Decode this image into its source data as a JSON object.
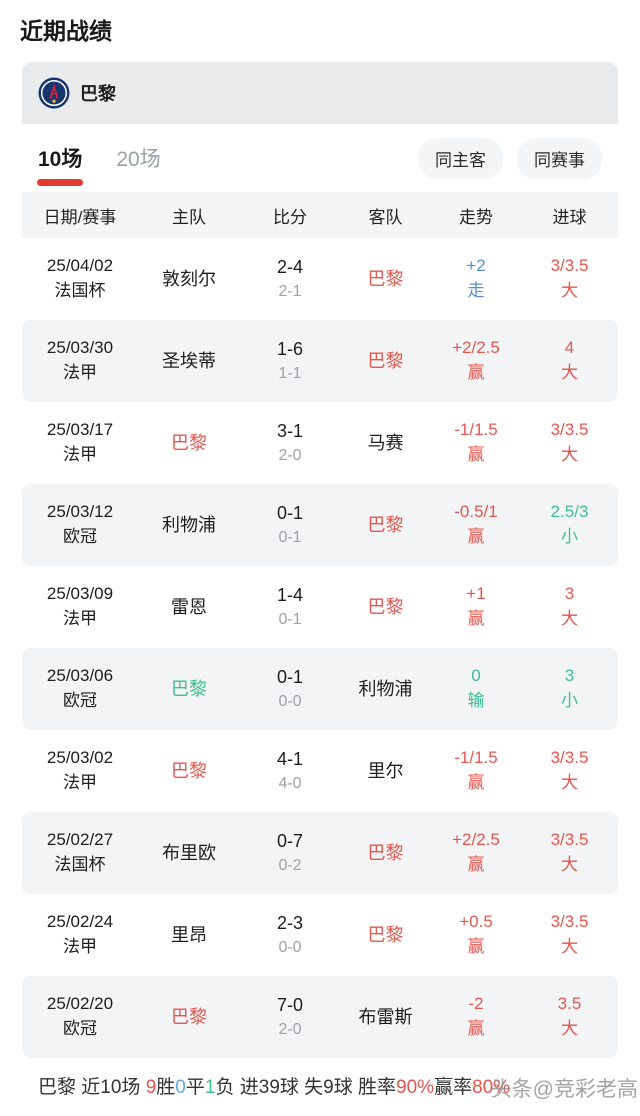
{
  "page": {
    "title": "近期战绩"
  },
  "colors": {
    "red": "#e2574f",
    "green": "#3fbe8f",
    "blue": "#5b8fd4",
    "sky": "#62a8da",
    "accent": "#e23c31",
    "sub": "#a1a1a6",
    "gray_tab": "#9aa0a6",
    "team_bar_bg": "#e9ebed",
    "alt_row_bg": "#f3f4f6"
  },
  "card": {
    "team": {
      "name": "巴黎",
      "logo": "psg-crest-icon"
    },
    "tabs": [
      {
        "label": "10场",
        "active": true
      },
      {
        "label": "20场",
        "active": false
      }
    ],
    "filters": [
      {
        "label": "同主客"
      },
      {
        "label": "同赛事"
      }
    ],
    "table": {
      "columns": [
        "日期/赛事",
        "主队",
        "比分",
        "客队",
        "走势",
        "进球"
      ],
      "rows": [
        {
          "date": "25/04/02",
          "competition": "法国杯",
          "home": "敦刻尔",
          "home_color": "black",
          "score": "2-4",
          "half_score": "2-1",
          "away": "巴黎",
          "away_color": "red",
          "trend_value": "+2",
          "trend_result": "走",
          "trend_color": "blue",
          "goals_value": "3/3.5",
          "goals_result": "大",
          "goals_color": "red"
        },
        {
          "date": "25/03/30",
          "competition": "法甲",
          "home": "圣埃蒂",
          "home_color": "black",
          "score": "1-6",
          "half_score": "1-1",
          "away": "巴黎",
          "away_color": "red",
          "trend_value": "+2/2.5",
          "trend_result": "赢",
          "trend_color": "red",
          "goals_value": "4",
          "goals_result": "大",
          "goals_color": "red"
        },
        {
          "date": "25/03/17",
          "competition": "法甲",
          "home": "巴黎",
          "home_color": "red",
          "score": "3-1",
          "half_score": "2-0",
          "away": "马赛",
          "away_color": "black",
          "trend_value": "-1/1.5",
          "trend_result": "赢",
          "trend_color": "red",
          "goals_value": "3/3.5",
          "goals_result": "大",
          "goals_color": "red"
        },
        {
          "date": "25/03/12",
          "competition": "欧冠",
          "home": "利物浦",
          "home_color": "black",
          "score": "0-1",
          "half_score": "0-1",
          "away": "巴黎",
          "away_color": "red",
          "trend_value": "-0.5/1",
          "trend_result": "赢",
          "trend_color": "red",
          "goals_value": "2.5/3",
          "goals_result": "小",
          "goals_color": "green"
        },
        {
          "date": "25/03/09",
          "competition": "法甲",
          "home": "雷恩",
          "home_color": "black",
          "score": "1-4",
          "half_score": "0-1",
          "away": "巴黎",
          "away_color": "red",
          "trend_value": "+1",
          "trend_result": "赢",
          "trend_color": "red",
          "goals_value": "3",
          "goals_result": "大",
          "goals_color": "red"
        },
        {
          "date": "25/03/06",
          "competition": "欧冠",
          "home": "巴黎",
          "home_color": "green",
          "score": "0-1",
          "half_score": "0-0",
          "away": "利物浦",
          "away_color": "black",
          "trend_value": "0",
          "trend_result": "输",
          "trend_color": "green",
          "goals_value": "3",
          "goals_result": "小",
          "goals_color": "green"
        },
        {
          "date": "25/03/02",
          "competition": "法甲",
          "home": "巴黎",
          "home_color": "red",
          "score": "4-1",
          "half_score": "4-0",
          "away": "里尔",
          "away_color": "black",
          "trend_value": "-1/1.5",
          "trend_result": "赢",
          "trend_color": "red",
          "goals_value": "3/3.5",
          "goals_result": "大",
          "goals_color": "red"
        },
        {
          "date": "25/02/27",
          "competition": "法国杯",
          "home": "布里欧",
          "home_color": "black",
          "score": "0-7",
          "half_score": "0-2",
          "away": "巴黎",
          "away_color": "red",
          "trend_value": "+2/2.5",
          "trend_result": "赢",
          "trend_color": "red",
          "goals_value": "3/3.5",
          "goals_result": "大",
          "goals_color": "red"
        },
        {
          "date": "25/02/24",
          "competition": "法甲",
          "home": "里昂",
          "home_color": "black",
          "score": "2-3",
          "half_score": "0-0",
          "away": "巴黎",
          "away_color": "red",
          "trend_value": "+0.5",
          "trend_result": "赢",
          "trend_color": "red",
          "goals_value": "3/3.5",
          "goals_result": "大",
          "goals_color": "red"
        },
        {
          "date": "25/02/20",
          "competition": "欧冠",
          "home": "巴黎",
          "home_color": "red",
          "score": "7-0",
          "half_score": "2-0",
          "away": "布雷斯",
          "away_color": "black",
          "trend_value": "-2",
          "trend_result": "赢",
          "trend_color": "red",
          "goals_value": "3.5",
          "goals_result": "大",
          "goals_color": "red"
        }
      ]
    }
  },
  "footer": {
    "parts": [
      {
        "text": "巴黎 近10场 ",
        "color": "dark"
      },
      {
        "text": "9",
        "color": "red"
      },
      {
        "text": "胜",
        "color": "dark"
      },
      {
        "text": "0",
        "color": "sky"
      },
      {
        "text": "平",
        "color": "dark"
      },
      {
        "text": "1",
        "color": "green"
      },
      {
        "text": "负",
        "color": "dark"
      },
      {
        "text": " 进39球 失9球 胜率",
        "color": "dark"
      },
      {
        "text": "90%",
        "color": "red"
      },
      {
        "text": "赢率",
        "color": "dark"
      },
      {
        "text": "80%",
        "color": "red"
      }
    ],
    "watermark": "头条@竞彩老高"
  }
}
